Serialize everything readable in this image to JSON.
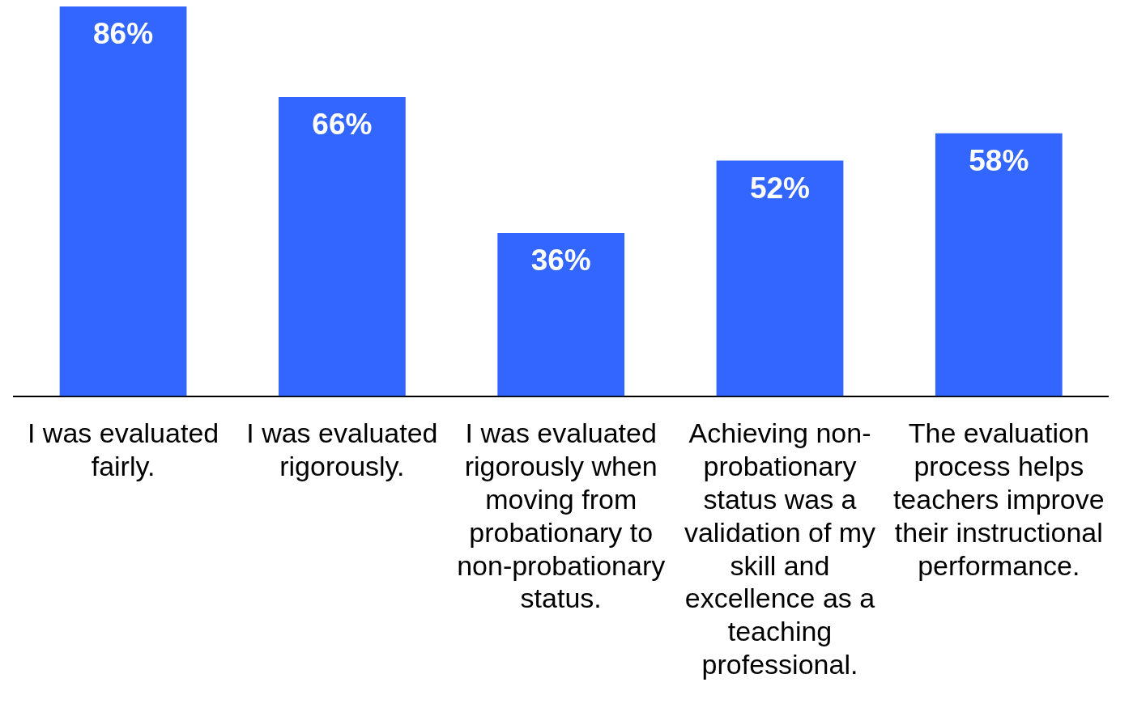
{
  "chart_data": {
    "type": "bar",
    "categories": [
      "I was evaluated fairly.",
      "I was evaluated rigorously.",
      "I was evaluated rigorously when moving from probationary to non-probationary status.",
      "Achieving non-probationary status was a validation of my skill and excellence as a teaching professional.",
      "The evaluation process helps teachers improve their instructional performance."
    ],
    "values": [
      86,
      66,
      36,
      52,
      58
    ],
    "value_labels": [
      "86%",
      "66%",
      "36%",
      "52%",
      "58%"
    ],
    "color": "#3366ff"
  }
}
